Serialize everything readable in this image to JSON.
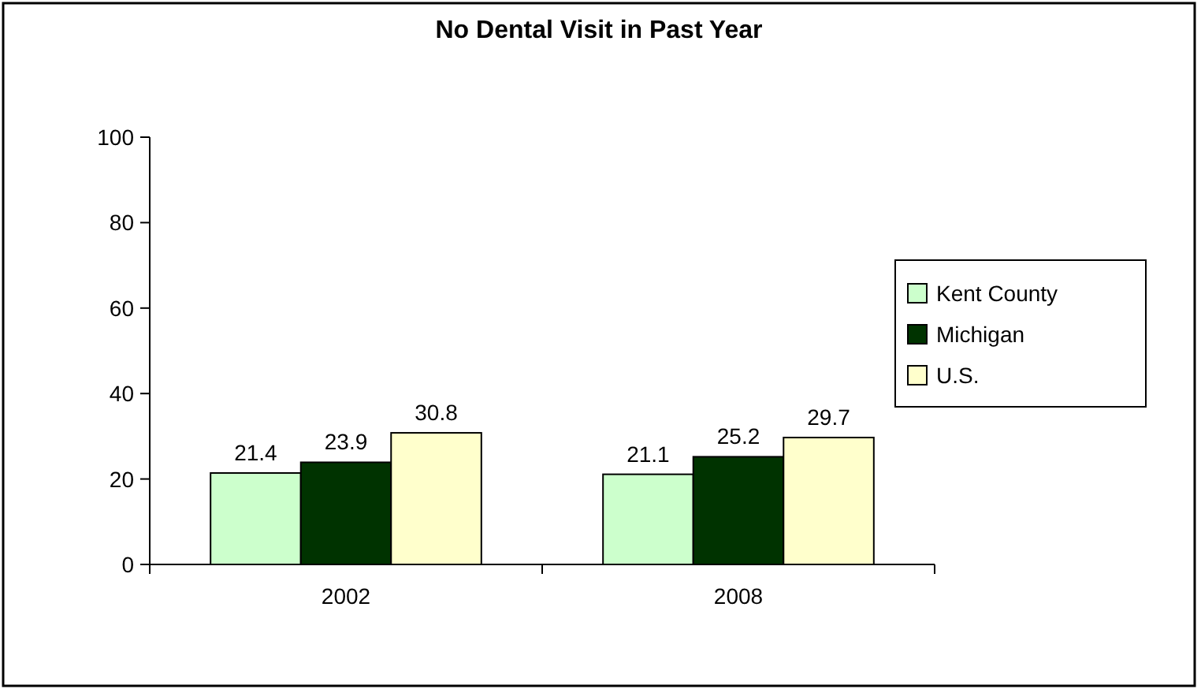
{
  "chart_data": {
    "type": "bar",
    "title": "No Dental Visit in Past Year",
    "categories": [
      "2002",
      "2008"
    ],
    "series": [
      {
        "name": "Kent County",
        "color": "#ccffcc",
        "values": [
          21.4,
          21.1
        ]
      },
      {
        "name": "Michigan",
        "color": "#003300",
        "values": [
          23.9,
          25.2
        ]
      },
      {
        "name": "U.S.",
        "color": "#ffffcc",
        "values": [
          30.8,
          29.7
        ]
      }
    ],
    "ylim": [
      0,
      100
    ],
    "yticks": [
      0,
      20,
      40,
      60,
      80,
      100
    ],
    "data_labels": true,
    "legend": "right",
    "grid": false
  }
}
